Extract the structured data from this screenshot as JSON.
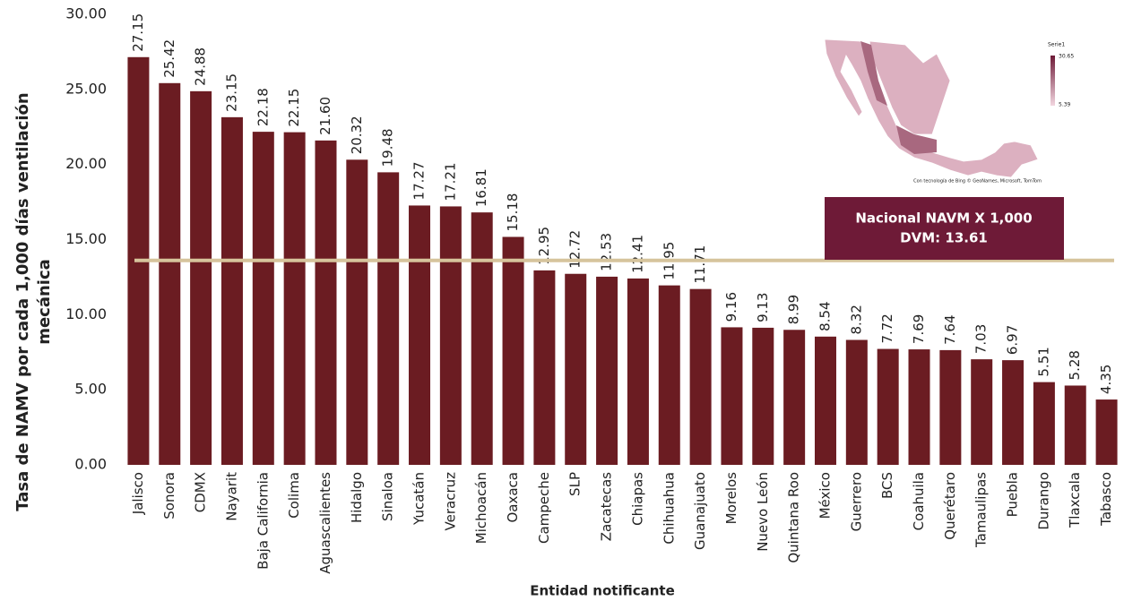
{
  "chart_data": {
    "type": "bar",
    "ylabel_lines": [
      "Tasa de NAMV por cada 1,000 días ventilación",
      "mecánica"
    ],
    "xlabel": "Entidad notificante",
    "categories": [
      "Jalisco",
      "Sonora",
      "CDMX",
      "Nayarit",
      "Baja California",
      "Colima",
      "Aguascalientes",
      "Hidalgo",
      "Sinaloa",
      "Yucatán",
      "Veracruz",
      "Michoacán",
      "Oaxaca",
      "Campeche",
      "SLP",
      "Zacatecas",
      "Chiapas",
      "Chihuahua",
      "Guanajuato",
      "Morelos",
      "Nuevo León",
      "Quintana Roo",
      "México",
      "Guerrero",
      "BCS",
      "Coahuila",
      "Querétaro",
      "Tamaulipas",
      "Puebla",
      "Durango",
      "Tlaxcala",
      "Tabasco"
    ],
    "values": [
      27.15,
      25.42,
      24.88,
      23.15,
      22.18,
      22.15,
      21.6,
      20.32,
      19.48,
      17.27,
      17.21,
      16.81,
      15.18,
      12.95,
      12.72,
      12.53,
      12.41,
      11.95,
      11.71,
      9.16,
      9.13,
      8.99,
      8.54,
      8.32,
      7.72,
      7.69,
      7.64,
      7.03,
      6.97,
      5.51,
      5.28,
      4.35
    ],
    "value_labels": [
      "27.15",
      "25.42",
      "24.88",
      "23.15",
      "22.18",
      "22.15",
      "21.60",
      "20.32",
      "19.48",
      "17.27",
      "17.21",
      "16.81",
      "15.18",
      "12.95",
      "12.72",
      "12.53",
      "12.41",
      "11.95",
      "11.71",
      "9.16",
      "9.13",
      "8.99",
      "8.54",
      "8.32",
      "7.72",
      "7.69",
      "7.64",
      "7.03",
      "6.97",
      "5.51",
      "5.28",
      "4.35"
    ],
    "color": "#6b1c22",
    "ylim": [
      0,
      30
    ],
    "yticks": [
      {
        "value": 0,
        "label": "0.00"
      },
      {
        "value": 5,
        "label": "5.00"
      },
      {
        "value": 10,
        "label": "10.00"
      },
      {
        "value": 15,
        "label": "15.00"
      },
      {
        "value": 20,
        "label": "20.00"
      },
      {
        "value": 25,
        "label": "25.00"
      },
      {
        "value": 30,
        "label": "30.00"
      }
    ],
    "reference_line": {
      "value": 13.61,
      "color": "#d6c49c",
      "label_lines": [
        "Nacional NAVM X 1,000",
        "DVM: 13.61"
      ],
      "label_color": "#6e1a37"
    },
    "map_inset": {
      "legend_title": "Serie1",
      "legend_ticks": [
        30.65,
        5.39
      ],
      "attribution": "Con tecnología de Bing © GeoNames, Microsoft, TomTom"
    }
  }
}
